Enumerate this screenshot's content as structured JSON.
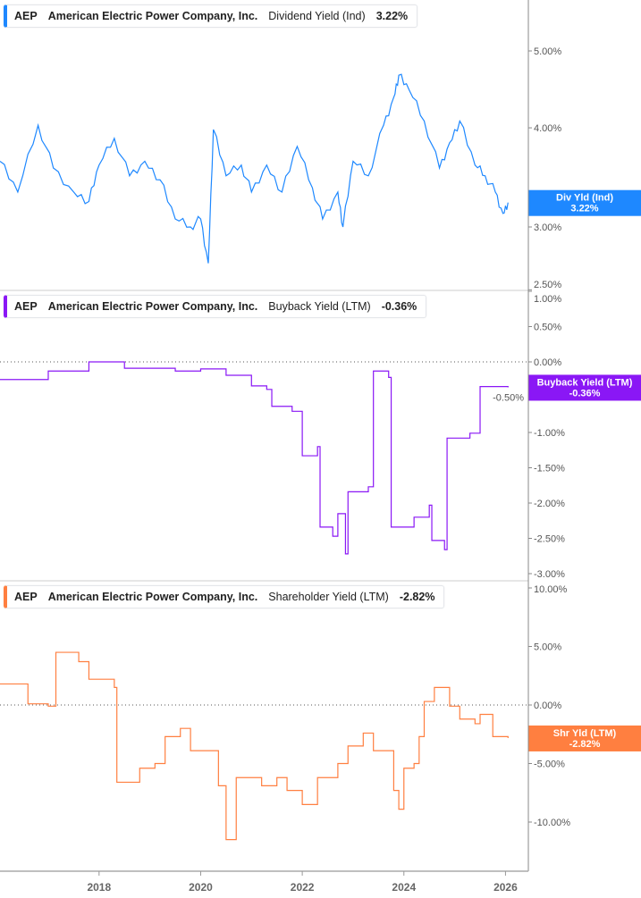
{
  "chart_data": [
    {
      "type": "line",
      "legend": {
        "ticker": "AEP",
        "company": "American Electric Power Company, Inc.",
        "metric": "Dividend Yield (Ind)",
        "value": "3.22%"
      },
      "badge": {
        "label": "Div Yld (Ind)",
        "value": "3.22%"
      },
      "color": "#1e88ff",
      "yscale": "log",
      "yticks": [
        5,
        4,
        3,
        2.5
      ],
      "ytick_labels": [
        "5.00%",
        "4.00%",
        "3.00%",
        "2.50%"
      ],
      "ylim": [
        2.5,
        5.6
      ],
      "x": [
        2016.05,
        2016.4,
        2016.8,
        2017.1,
        2017.5,
        2017.8,
        2018.0,
        2018.3,
        2018.6,
        2018.9,
        2019.2,
        2019.5,
        2019.8,
        2020.0,
        2020.15,
        2020.25,
        2020.5,
        2020.8,
        2021.0,
        2021.3,
        2021.6,
        2021.9,
        2022.2,
        2022.4,
        2022.7,
        2022.8,
        2023.0,
        2023.3,
        2023.6,
        2023.8,
        2023.9,
        2024.1,
        2024.4,
        2024.7,
        2024.9,
        2025.1,
        2025.4,
        2025.6,
        2025.8,
        2025.95,
        2026.05
      ],
      "y": [
        3.63,
        3.32,
        4.03,
        3.56,
        3.32,
        3.23,
        3.59,
        3.88,
        3.48,
        3.63,
        3.44,
        3.07,
        3.0,
        3.07,
        2.7,
        3.98,
        3.48,
        3.59,
        3.32,
        3.59,
        3.32,
        3.79,
        3.36,
        3.07,
        3.32,
        3.0,
        3.63,
        3.48,
        4.03,
        4.37,
        4.66,
        4.47,
        4.08,
        3.56,
        3.83,
        4.08,
        3.59,
        3.48,
        3.32,
        3.12,
        3.22
      ]
    },
    {
      "type": "line",
      "legend": {
        "ticker": "AEP",
        "company": "American Electric Power Company, Inc.",
        "metric": "Buyback Yield (LTM)",
        "value": "-0.36%"
      },
      "badge": {
        "label": "Buyback Yield (LTM)",
        "value": "-0.36%"
      },
      "color": "#8a17f5",
      "yscale": "linear",
      "yticks": [
        1,
        0.5,
        0,
        -0.5,
        -1,
        -1.5,
        -2,
        -2.5,
        -3
      ],
      "ytick_labels": [
        "1.00%",
        "0.50%",
        "0.00%",
        "-0.50%",
        "-1.00%",
        "-1.50%",
        "-2.00%",
        "-2.50%",
        "-3.00%"
      ],
      "ylim": [
        -3.1,
        1.0
      ],
      "x": [
        2016.05,
        2017.0,
        2017.8,
        2018.5,
        2019.5,
        2020.0,
        2020.5,
        2021.0,
        2021.3,
        2021.4,
        2021.8,
        2022.0,
        2022.3,
        2022.35,
        2022.6,
        2022.7,
        2022.85,
        2022.9,
        2023.3,
        2023.4,
        2023.7,
        2023.75,
        2024.2,
        2024.5,
        2024.55,
        2024.8,
        2024.85,
        2025.3,
        2025.5,
        2026.05
      ],
      "y": [
        -0.25,
        -0.13,
        0,
        -0.09,
        -0.13,
        -0.1,
        -0.19,
        -0.34,
        -0.39,
        -0.63,
        -0.7,
        -1.33,
        -1.2,
        -2.34,
        -2.47,
        -2.15,
        -2.72,
        -1.84,
        -1.77,
        -0.13,
        -0.22,
        -2.34,
        -2.2,
        -2.03,
        -2.53,
        -2.66,
        -1.08,
        -1.01,
        -0.35,
        -0.36
      ]
    },
    {
      "type": "line",
      "legend": {
        "ticker": "AEP",
        "company": "American Electric Power Company, Inc.",
        "metric": "Shareholder Yield (LTM)",
        "value": "-2.82%"
      },
      "badge": {
        "label": "Shr Yld (LTM)",
        "value": "-2.82%"
      },
      "color": "#ff7f40",
      "yscale": "linear",
      "yticks": [
        10,
        5,
        0,
        -5,
        -10
      ],
      "ytick_labels": [
        "10.00%",
        "5.00%",
        "0.00%",
        "-5.00%",
        "-10.00%"
      ],
      "ylim": [
        -14,
        10.5
      ],
      "x": [
        2016.05,
        2016.6,
        2017.0,
        2017.15,
        2017.6,
        2017.8,
        2018.3,
        2018.35,
        2018.8,
        2019.1,
        2019.3,
        2019.6,
        2019.8,
        2020.2,
        2020.35,
        2020.5,
        2020.7,
        2021.2,
        2021.5,
        2021.7,
        2022.0,
        2022.3,
        2022.7,
        2022.9,
        2023.2,
        2023.4,
        2023.8,
        2023.9,
        2024.0,
        2024.2,
        2024.3,
        2024.4,
        2024.6,
        2024.9,
        2025.1,
        2025.4,
        2025.5,
        2025.75,
        2026.05
      ],
      "y": [
        1.8,
        0.1,
        -0.1,
        4.5,
        3.7,
        2.2,
        1.5,
        -6.6,
        -5.4,
        -5.0,
        -2.7,
        -2.0,
        -3.9,
        -3.9,
        -6.9,
        -11.5,
        -6.2,
        -6.9,
        -6.2,
        -7.3,
        -8.5,
        -6.2,
        -5.0,
        -3.5,
        -2.4,
        -3.9,
        -7.3,
        -8.9,
        -5.4,
        -5.0,
        -2.7,
        0.3,
        1.5,
        -0.1,
        -1.2,
        -1.6,
        -0.8,
        -2.7,
        -2.82
      ]
    }
  ],
  "x_axis": {
    "ticks": [
      2018,
      2020,
      2022,
      2024,
      2026
    ],
    "labels": [
      "2018",
      "2020",
      "2022",
      "2024",
      "2026"
    ],
    "xlim": [
      2016.05,
      2026.45
    ]
  }
}
